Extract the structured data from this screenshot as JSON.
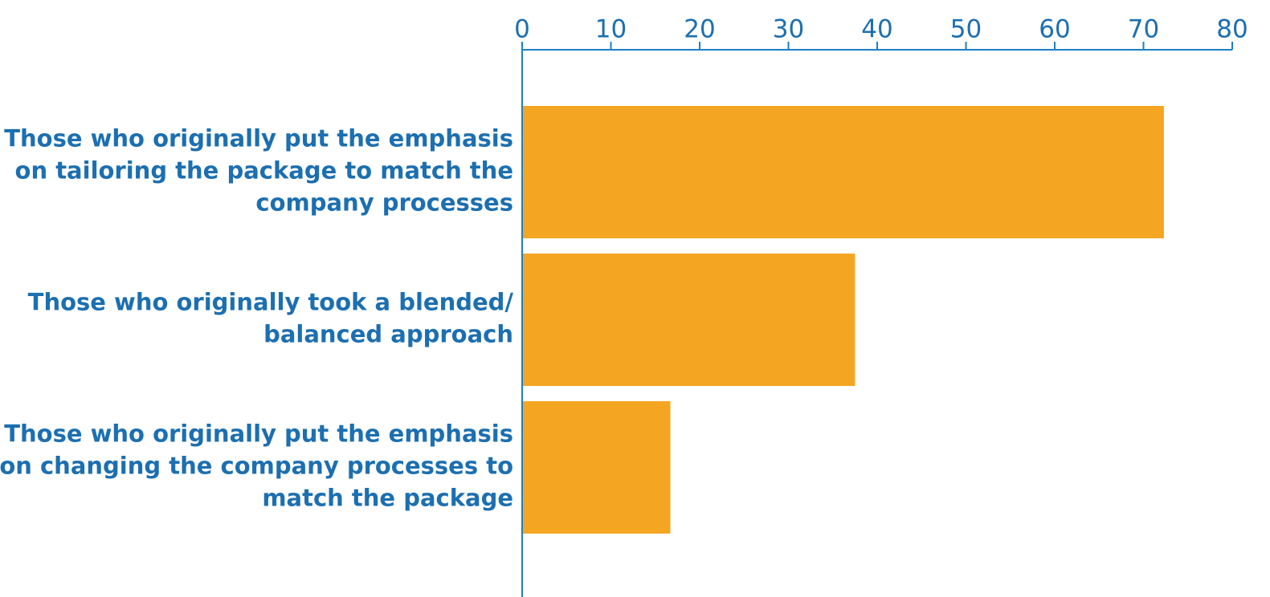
{
  "chart_data": {
    "type": "bar",
    "orientation": "horizontal",
    "x_axis_position": "top",
    "grid": false,
    "xlim": [
      0,
      80
    ],
    "xticks": [
      0,
      10,
      20,
      30,
      40,
      50,
      60,
      70,
      80
    ],
    "categories": [
      {
        "label_lines": [
          "Those who originally put the emphasis",
          "on tailoring the package to match the",
          "company processes"
        ]
      },
      {
        "label_lines": [
          "Those who originally took a blended/",
          "balanced approach"
        ]
      },
      {
        "label_lines": [
          "Those who originally put the emphasis",
          "on changing the company processes to",
          "match the package"
        ]
      }
    ],
    "values": [
      72.3,
      37.5,
      16.7
    ]
  },
  "colors": {
    "bar": "#F4A622",
    "axis": "#1E7FC2",
    "text": "#1C6FB0"
  }
}
